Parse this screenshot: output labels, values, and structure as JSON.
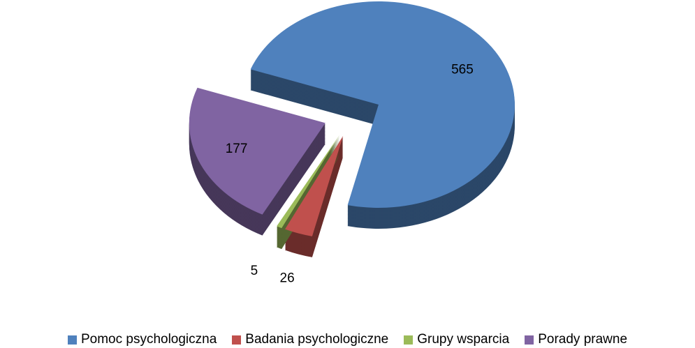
{
  "chart_data": {
    "type": "pie",
    "categories": [
      "Pomoc psychologiczna",
      "Badania psychologiczne",
      "Grupy wsparcia",
      "Porady prawne"
    ],
    "values": [
      565,
      26,
      5,
      177
    ],
    "colors": [
      "#4f81bd",
      "#c0504d",
      "#9bbb59",
      "#8064a2"
    ],
    "legend": "bottom"
  }
}
